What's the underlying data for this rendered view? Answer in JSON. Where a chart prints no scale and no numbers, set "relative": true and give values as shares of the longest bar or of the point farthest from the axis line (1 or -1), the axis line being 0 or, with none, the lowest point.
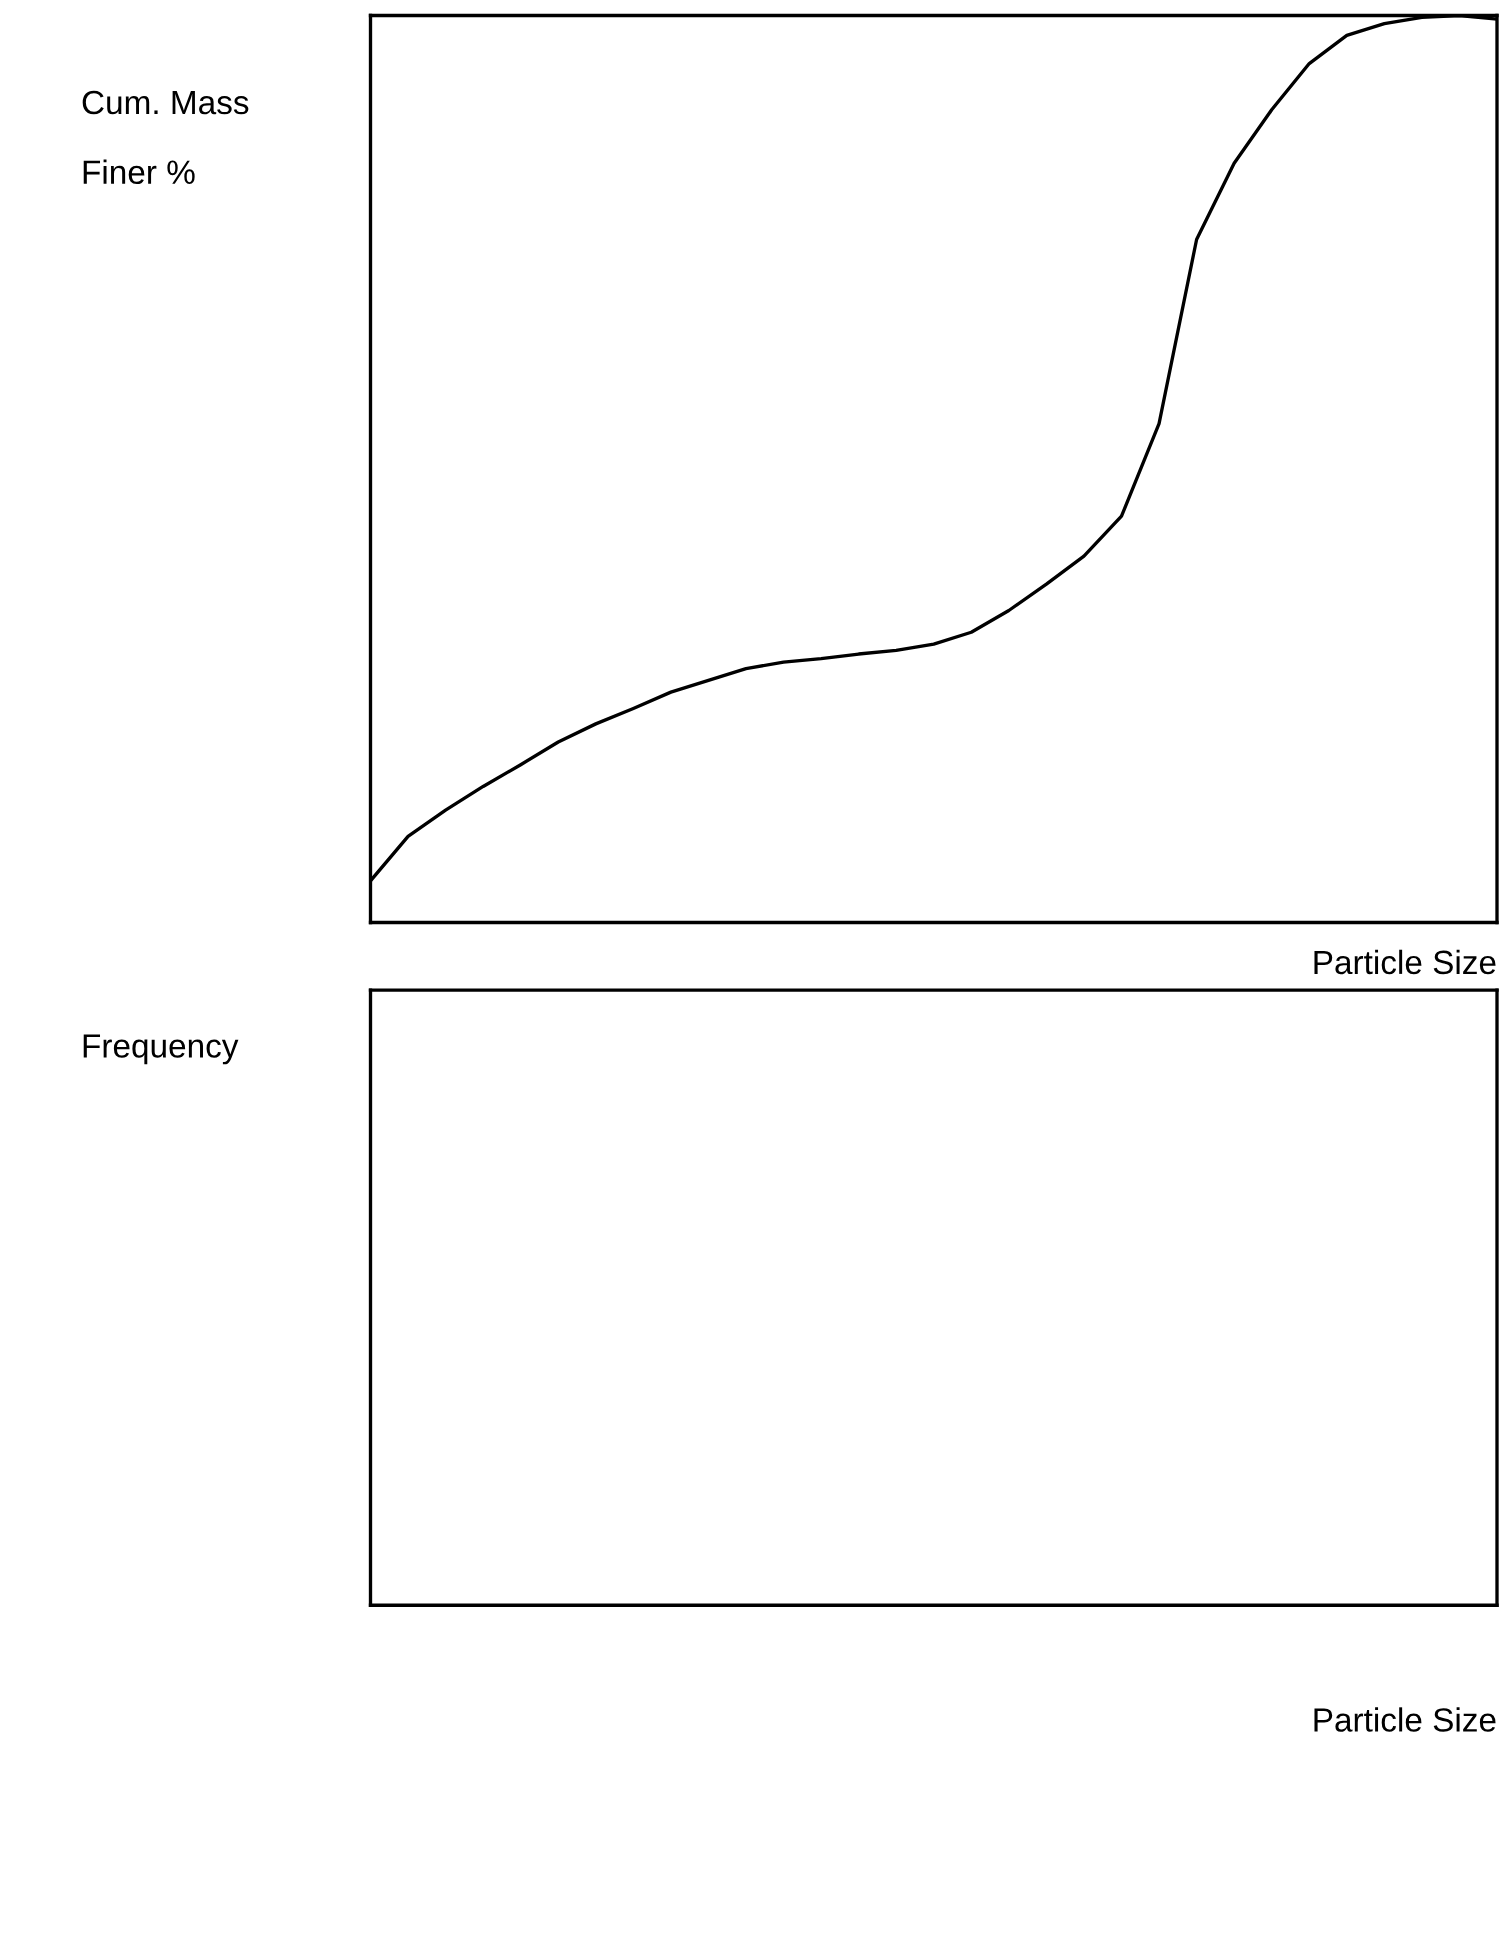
{
  "chart_data": [
    {
      "type": "line",
      "ylabel": "Cum. Mass\nFiner %",
      "xlabel": "Particle Size",
      "relative": true,
      "color": "#000000",
      "categories": [
        null,
        null,
        null,
        null,
        null,
        null,
        null,
        null,
        null,
        null,
        null,
        null,
        null,
        null,
        null,
        null,
        null,
        null,
        null,
        null,
        null,
        null,
        null,
        null,
        null,
        null,
        null,
        null,
        null,
        null,
        null
      ],
      "values": [
        0.046,
        0.095,
        0.124,
        0.15,
        0.174,
        0.199,
        0.219,
        0.236,
        0.254,
        0.267,
        0.28,
        0.287,
        0.291,
        0.296,
        0.3,
        0.307,
        0.32,
        0.344,
        0.373,
        0.404,
        0.448,
        0.55,
        0.753,
        0.837,
        0.896,
        0.947,
        0.978,
        0.991,
        0.998,
        1,
        0.996
      ]
    },
    {
      "type": "other",
      "ylabel": "Frequency",
      "xlabel": "Particle Size"
    }
  ]
}
